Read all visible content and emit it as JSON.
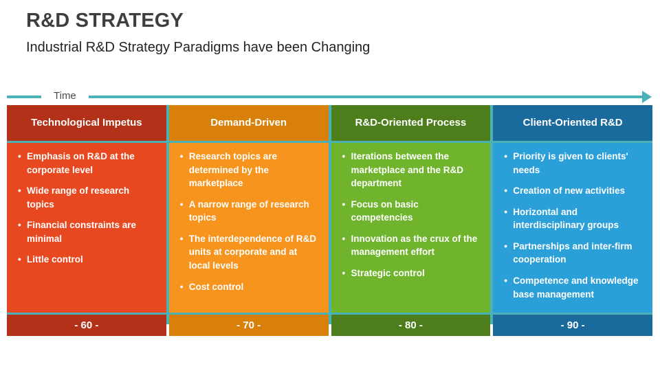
{
  "slide": {
    "title": "R&D STRATEGY",
    "subtitle": "Industrial R&D Strategy Paradigms have been Changing",
    "time_label": "Time"
  },
  "colors": {
    "accent_teal": "#4ab1b6",
    "title_text": "#3e3e3e",
    "subtitle_text": "#232323",
    "time_text": "#4a4a4a",
    "cell_text": "#ffffff",
    "background": "#ffffff"
  },
  "columns": [
    {
      "header": "Technological Impetus",
      "header_color": "#b23118",
      "body_color": "#e8481f",
      "footer_color": "#b23118",
      "bullets": [
        "Emphasis on R&D at the corporate level",
        "Wide range of research topics",
        "Financial constraints are minimal",
        "Little control"
      ],
      "decade": "- 60 -"
    },
    {
      "header": "Demand-Driven",
      "header_color": "#d8800a",
      "body_color": "#f6941e",
      "footer_color": "#d8800a",
      "bullets": [
        "Research topics are determined by the marketplace",
        "A narrow range of research topics",
        "The interdependence of R&D units at corporate and at local levels",
        "Cost control"
      ],
      "decade": "- 70 -"
    },
    {
      "header": "R&D-Oriented Process",
      "header_color": "#4e7d1c",
      "body_color": "#70b42d",
      "footer_color": "#4e7d1c",
      "bullets": [
        "Iterations between the marketplace and the R&D department",
        "Focus on basic competencies",
        "Innovation as the crux of the management effort",
        "Strategic control"
      ],
      "decade": "- 80 -"
    },
    {
      "header": "Client-Oriented R&D",
      "header_color": "#1a6a9e",
      "body_color": "#2b9fd7",
      "footer_color": "#1a6a9e",
      "bullets": [
        "Priority is given to clients' needs",
        "Creation of new activities",
        "Horizontal and interdisciplinary groups",
        "Partnerships and inter-firm cooperation",
        "Competence and knowledge base management"
      ],
      "decade": "- 90 -"
    }
  ]
}
